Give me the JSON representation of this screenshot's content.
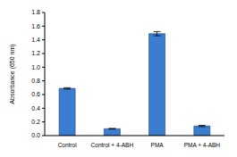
{
  "chart_data": {
    "type": "bar",
    "y_label": "Absorbance (650 nm)",
    "categories": [
      "Control",
      "Control + 4-ABH",
      "PMA",
      "PMA + 4-ABH"
    ],
    "values": [
      0.69,
      0.1,
      1.49,
      0.14
    ],
    "errors": [
      0.01,
      0.005,
      0.03,
      0.01
    ],
    "color": "#3b7dd0",
    "ylim": [
      0,
      1.8
    ],
    "yticks": [
      {
        "value": 0,
        "label": "0.0"
      },
      0.2,
      0.4,
      0.6,
      0.8,
      {
        "value": 1,
        "label": "1.0"
      },
      1.2,
      1.4,
      1.6,
      1.8
    ],
    "grid": false
  }
}
